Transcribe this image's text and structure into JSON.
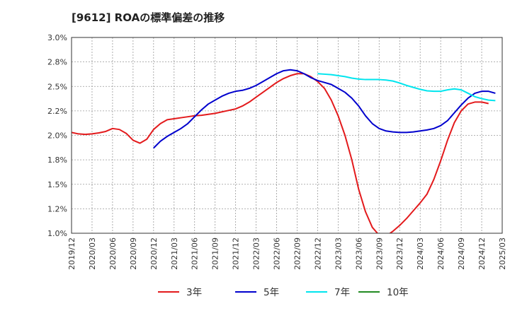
{
  "chart_data": {
    "type": "line",
    "title": "[9612]  ROAの標準偏差の推移",
    "xlabel": "",
    "ylabel": "",
    "ylim": [
      1.0,
      3.0
    ],
    "y_ticks": [
      "1.0%",
      "1.2%",
      "1.5%",
      "1.8%",
      "2.0%",
      "2.2%",
      "2.5%",
      "2.8%",
      "3.0%"
    ],
    "x_ticks": [
      "2019/12",
      "2020/03",
      "2020/06",
      "2020/09",
      "2020/12",
      "2021/03",
      "2021/06",
      "2021/09",
      "2021/12",
      "2022/03",
      "2022/06",
      "2022/09",
      "2022/12",
      "2023/03",
      "2023/06",
      "2023/09",
      "2023/12",
      "2024/03",
      "2024/06",
      "2024/09",
      "2024/12",
      "2025/03"
    ],
    "grid": true,
    "legend_position": "bottom",
    "series": [
      {
        "name": "3年",
        "color": "#e31a1c",
        "values": [
          [
            "2019/12",
            2.03
          ],
          [
            "2020/01",
            2.015
          ],
          [
            "2020/02",
            2.01
          ],
          [
            "2020/03",
            2.015
          ],
          [
            "2020/04",
            2.025
          ],
          [
            "2020/05",
            2.04
          ],
          [
            "2020/06",
            2.07
          ],
          [
            "2020/07",
            2.06
          ],
          [
            "2020/08",
            2.02
          ],
          [
            "2020/09",
            1.95
          ],
          [
            "2020/10",
            1.92
          ],
          [
            "2020/11",
            1.96
          ],
          [
            "2020/12",
            2.06
          ],
          [
            "2021/01",
            2.12
          ],
          [
            "2021/02",
            2.16
          ],
          [
            "2021/03",
            2.17
          ],
          [
            "2021/04",
            2.18
          ],
          [
            "2021/05",
            2.19
          ],
          [
            "2021/06",
            2.2
          ],
          [
            "2021/07",
            2.205
          ],
          [
            "2021/08",
            2.215
          ],
          [
            "2021/09",
            2.225
          ],
          [
            "2021/10",
            2.24
          ],
          [
            "2021/11",
            2.255
          ],
          [
            "2021/12",
            2.27
          ],
          [
            "2022/01",
            2.3
          ],
          [
            "2022/02",
            2.34
          ],
          [
            "2022/03",
            2.39
          ],
          [
            "2022/04",
            2.44
          ],
          [
            "2022/05",
            2.49
          ],
          [
            "2022/06",
            2.54
          ],
          [
            "2022/07",
            2.58
          ],
          [
            "2022/08",
            2.61
          ],
          [
            "2022/09",
            2.63
          ],
          [
            "2022/10",
            2.63
          ],
          [
            "2022/11",
            2.6
          ],
          [
            "2022/12",
            2.55
          ],
          [
            "2023/01",
            2.48
          ],
          [
            "2023/02",
            2.36
          ],
          [
            "2023/03",
            2.2
          ],
          [
            "2023/04",
            2.0
          ],
          [
            "2023/05",
            1.75
          ],
          [
            "2023/06",
            1.45
          ],
          [
            "2023/07",
            1.22
          ],
          [
            "2023/08",
            1.06
          ],
          [
            "2023/09",
            0.98
          ],
          [
            "2023/10",
            0.97
          ],
          [
            "2023/11",
            1.02
          ],
          [
            "2023/12",
            1.08
          ],
          [
            "2024/01",
            1.15
          ],
          [
            "2024/02",
            1.23
          ],
          [
            "2024/03",
            1.31
          ],
          [
            "2024/04",
            1.4
          ],
          [
            "2024/05",
            1.55
          ],
          [
            "2024/06",
            1.74
          ],
          [
            "2024/07",
            1.95
          ],
          [
            "2024/08",
            2.13
          ],
          [
            "2024/09",
            2.25
          ],
          [
            "2024/10",
            2.32
          ],
          [
            "2024/11",
            2.34
          ],
          [
            "2024/12",
            2.34
          ],
          [
            "2025/01",
            2.325
          ]
        ]
      },
      {
        "name": "5年",
        "color": "#0000cd",
        "values": [
          [
            "2020/12",
            1.87
          ],
          [
            "2021/01",
            1.94
          ],
          [
            "2021/02",
            1.99
          ],
          [
            "2021/03",
            2.03
          ],
          [
            "2021/04",
            2.07
          ],
          [
            "2021/05",
            2.12
          ],
          [
            "2021/06",
            2.19
          ],
          [
            "2021/07",
            2.26
          ],
          [
            "2021/08",
            2.32
          ],
          [
            "2021/09",
            2.36
          ],
          [
            "2021/10",
            2.4
          ],
          [
            "2021/11",
            2.43
          ],
          [
            "2021/12",
            2.45
          ],
          [
            "2022/01",
            2.46
          ],
          [
            "2022/02",
            2.48
          ],
          [
            "2022/03",
            2.51
          ],
          [
            "2022/04",
            2.55
          ],
          [
            "2022/05",
            2.59
          ],
          [
            "2022/06",
            2.63
          ],
          [
            "2022/07",
            2.66
          ],
          [
            "2022/08",
            2.67
          ],
          [
            "2022/09",
            2.66
          ],
          [
            "2022/10",
            2.63
          ],
          [
            "2022/11",
            2.59
          ],
          [
            "2022/12",
            2.56
          ],
          [
            "2023/01",
            2.54
          ],
          [
            "2023/02",
            2.52
          ],
          [
            "2023/03",
            2.48
          ],
          [
            "2023/04",
            2.44
          ],
          [
            "2023/05",
            2.38
          ],
          [
            "2023/06",
            2.3
          ],
          [
            "2023/07",
            2.2
          ],
          [
            "2023/08",
            2.12
          ],
          [
            "2023/09",
            2.07
          ],
          [
            "2023/10",
            2.045
          ],
          [
            "2023/11",
            2.035
          ],
          [
            "2023/12",
            2.03
          ],
          [
            "2024/01",
            2.03
          ],
          [
            "2024/02",
            2.035
          ],
          [
            "2024/03",
            2.045
          ],
          [
            "2024/04",
            2.055
          ],
          [
            "2024/05",
            2.07
          ],
          [
            "2024/06",
            2.1
          ],
          [
            "2024/07",
            2.15
          ],
          [
            "2024/08",
            2.23
          ],
          [
            "2024/09",
            2.31
          ],
          [
            "2024/10",
            2.38
          ],
          [
            "2024/11",
            2.43
          ],
          [
            "2024/12",
            2.45
          ],
          [
            "2025/01",
            2.45
          ],
          [
            "2025/02",
            2.43
          ]
        ]
      },
      {
        "name": "7年",
        "color": "#00e5ee",
        "values": [
          [
            "2022/12",
            2.63
          ],
          [
            "2023/01",
            2.625
          ],
          [
            "2023/02",
            2.62
          ],
          [
            "2023/03",
            2.61
          ],
          [
            "2023/04",
            2.6
          ],
          [
            "2023/05",
            2.585
          ],
          [
            "2023/06",
            2.575
          ],
          [
            "2023/07",
            2.57
          ],
          [
            "2023/08",
            2.57
          ],
          [
            "2023/09",
            2.57
          ],
          [
            "2023/10",
            2.565
          ],
          [
            "2023/11",
            2.555
          ],
          [
            "2023/12",
            2.535
          ],
          [
            "2024/01",
            2.51
          ],
          [
            "2024/02",
            2.49
          ],
          [
            "2024/03",
            2.47
          ],
          [
            "2024/04",
            2.455
          ],
          [
            "2024/05",
            2.45
          ],
          [
            "2024/06",
            2.45
          ],
          [
            "2024/07",
            2.465
          ],
          [
            "2024/08",
            2.475
          ],
          [
            "2024/09",
            2.465
          ],
          [
            "2024/10",
            2.43
          ],
          [
            "2024/11",
            2.395
          ],
          [
            "2024/12",
            2.375
          ],
          [
            "2025/01",
            2.36
          ],
          [
            "2025/02",
            2.355
          ]
        ]
      },
      {
        "name": "10年",
        "color": "#228b22",
        "values": []
      }
    ]
  }
}
